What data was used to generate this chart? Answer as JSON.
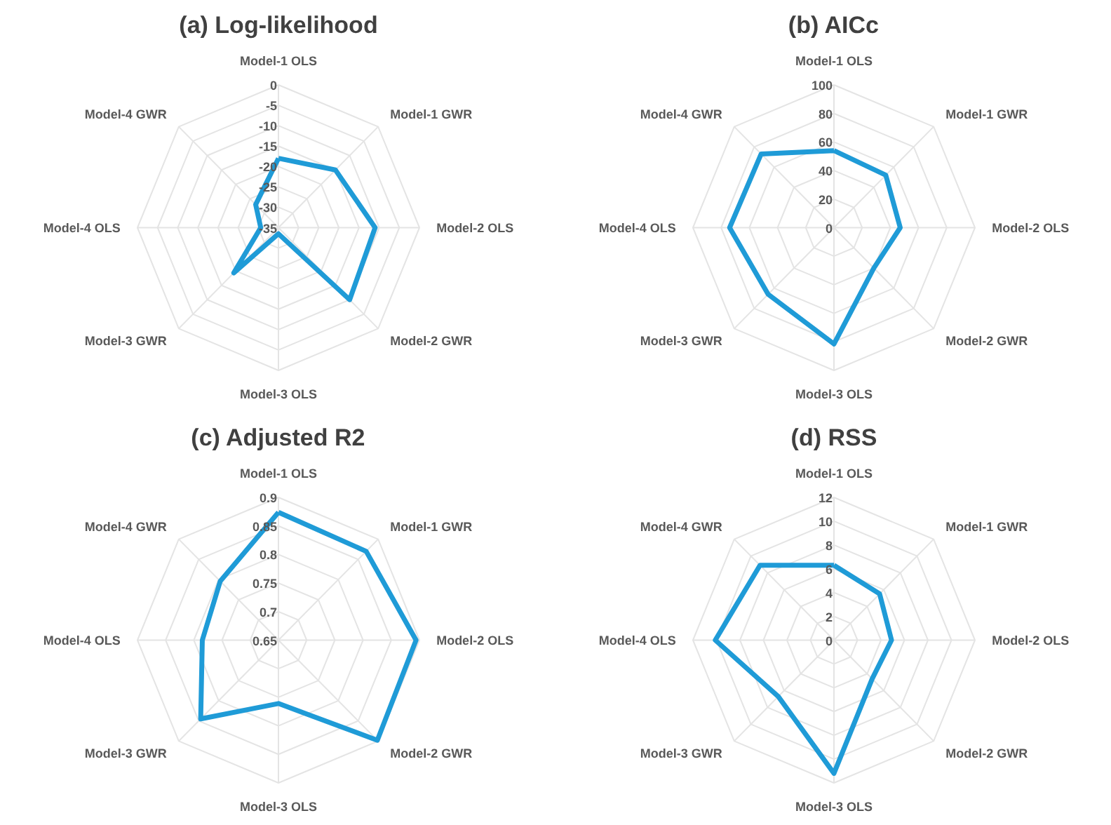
{
  "chart_data": [
    {
      "type": "radar",
      "title": "(a) Log-likelihood",
      "categories": [
        "Model-1 OLS",
        "Model-1 GWR",
        "Model-2 OLS",
        "Model-2 GWR",
        "Model-3 OLS",
        "Model-3 GWR",
        "Model-4 OLS",
        "Model-4 GWR"
      ],
      "ylim": [
        -35,
        0
      ],
      "yticks": [
        0,
        -5,
        -10,
        -15,
        -20,
        -25,
        -30,
        -35
      ],
      "grid": true,
      "series": [
        {
          "color": "#1f9bd7",
          "values": [
            -18,
            -15,
            -11,
            -10,
            -33.5,
            -19.3,
            -30.6,
            -27
          ]
        }
      ]
    },
    {
      "type": "radar",
      "title": "(b) AICc",
      "categories": [
        "Model-1 OLS",
        "Model-1 GWR",
        "Model-2 OLS",
        "Model-2 GWR",
        "Model-3 OLS",
        "Model-3 GWR",
        "Model-4 OLS",
        "Model-4 GWR"
      ],
      "ylim": [
        0,
        100
      ],
      "yticks": [
        0,
        20,
        40,
        60,
        80,
        100
      ],
      "grid": true,
      "series": [
        {
          "color": "#1f9bd7",
          "values": [
            54,
            52,
            47,
            40,
            81.5,
            66,
            74,
            73
          ]
        }
      ]
    },
    {
      "type": "radar",
      "title": "(c) Adjusted R2",
      "categories": [
        "Model-1 OLS",
        "Model-1 GWR",
        "Model-2 OLS",
        "Model-2 GWR",
        "Model-3 OLS",
        "Model-3 GWR",
        "Model-4 OLS",
        "Model-4 GWR"
      ],
      "ylim": [
        0.65,
        0.9
      ],
      "yticks": [
        0.65,
        0.7,
        0.75,
        0.8,
        0.85,
        0.9
      ],
      "grid": true,
      "series": [
        {
          "color": "#1f9bd7",
          "values": [
            0.874,
            0.87,
            0.894,
            0.898,
            0.761,
            0.845,
            0.785,
            0.796
          ]
        }
      ]
    },
    {
      "type": "radar",
      "title": "(d) RSS",
      "categories": [
        "Model-1 OLS",
        "Model-1 GWR",
        "Model-2 OLS",
        "Model-2 GWR",
        "Model-3 OLS",
        "Model-3 GWR",
        "Model-4 OLS",
        "Model-4 GWR"
      ],
      "ylim": [
        0,
        12
      ],
      "yticks": [
        0,
        2,
        4,
        6,
        8,
        10,
        12
      ],
      "grid": true,
      "series": [
        {
          "color": "#1f9bd7",
          "values": [
            6.3,
            5.5,
            4.9,
            4.6,
            11.2,
            6.7,
            10.1,
            8.9
          ]
        }
      ]
    }
  ]
}
